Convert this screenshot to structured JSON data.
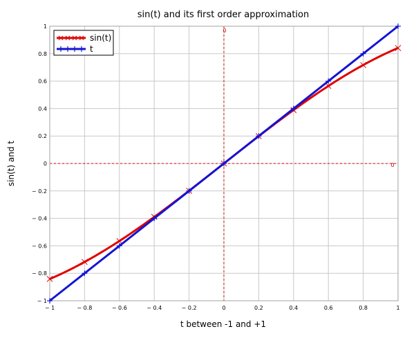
{
  "chart_data": {
    "type": "line",
    "title": "sin(t) and its first order approximation",
    "xlabel": "t between -1 and +1",
    "ylabel": "sin(t) and t",
    "xlim": [
      -1,
      1
    ],
    "ylim": [
      -1,
      1
    ],
    "grid": true,
    "legend_position": "top-left",
    "x_ticks": [
      -1,
      -0.8,
      -0.6,
      -0.4,
      -0.2,
      0,
      0.2,
      0.4,
      0.6,
      0.8,
      1
    ],
    "x_tick_labels": [
      "− 1",
      "− 0.8",
      "− 0.6",
      "− 0.4",
      "− 0.2",
      "0",
      "0.2",
      "0.4",
      "0.6",
      "0.8",
      "1"
    ],
    "y_ticks": [
      1,
      0.8,
      0.6,
      0.4,
      0.2,
      0,
      -0.2,
      -0.4,
      -0.6,
      -0.8,
      -1
    ],
    "y_tick_labels": [
      "1",
      "0.8",
      "0.6",
      "0.4",
      "0.2",
      "0",
      "− 0.2",
      "− 0.4",
      "− 0.6",
      "− 0.8",
      "− 1"
    ],
    "reference_lines": {
      "x_zero_label": "0",
      "y_zero_label": "0",
      "color": "#d40000"
    },
    "series": [
      {
        "name": "sin(t)",
        "color": "#e00000",
        "marker": "x",
        "x": [
          -1,
          -0.8,
          -0.6,
          -0.4,
          -0.2,
          0,
          0.2,
          0.4,
          0.6,
          0.8,
          1
        ],
        "y": [
          -0.841,
          -0.717,
          -0.565,
          -0.389,
          -0.199,
          0,
          0.199,
          0.389,
          0.565,
          0.717,
          0.841
        ]
      },
      {
        "name": "t",
        "color": "#1414d4",
        "marker": "+",
        "x": [
          -1,
          -0.8,
          -0.6,
          -0.4,
          -0.2,
          0,
          0.2,
          0.4,
          0.6,
          0.8,
          1
        ],
        "y": [
          -1,
          -0.8,
          -0.6,
          -0.4,
          -0.2,
          0,
          0.2,
          0.4,
          0.6,
          0.8,
          1
        ]
      }
    ]
  }
}
